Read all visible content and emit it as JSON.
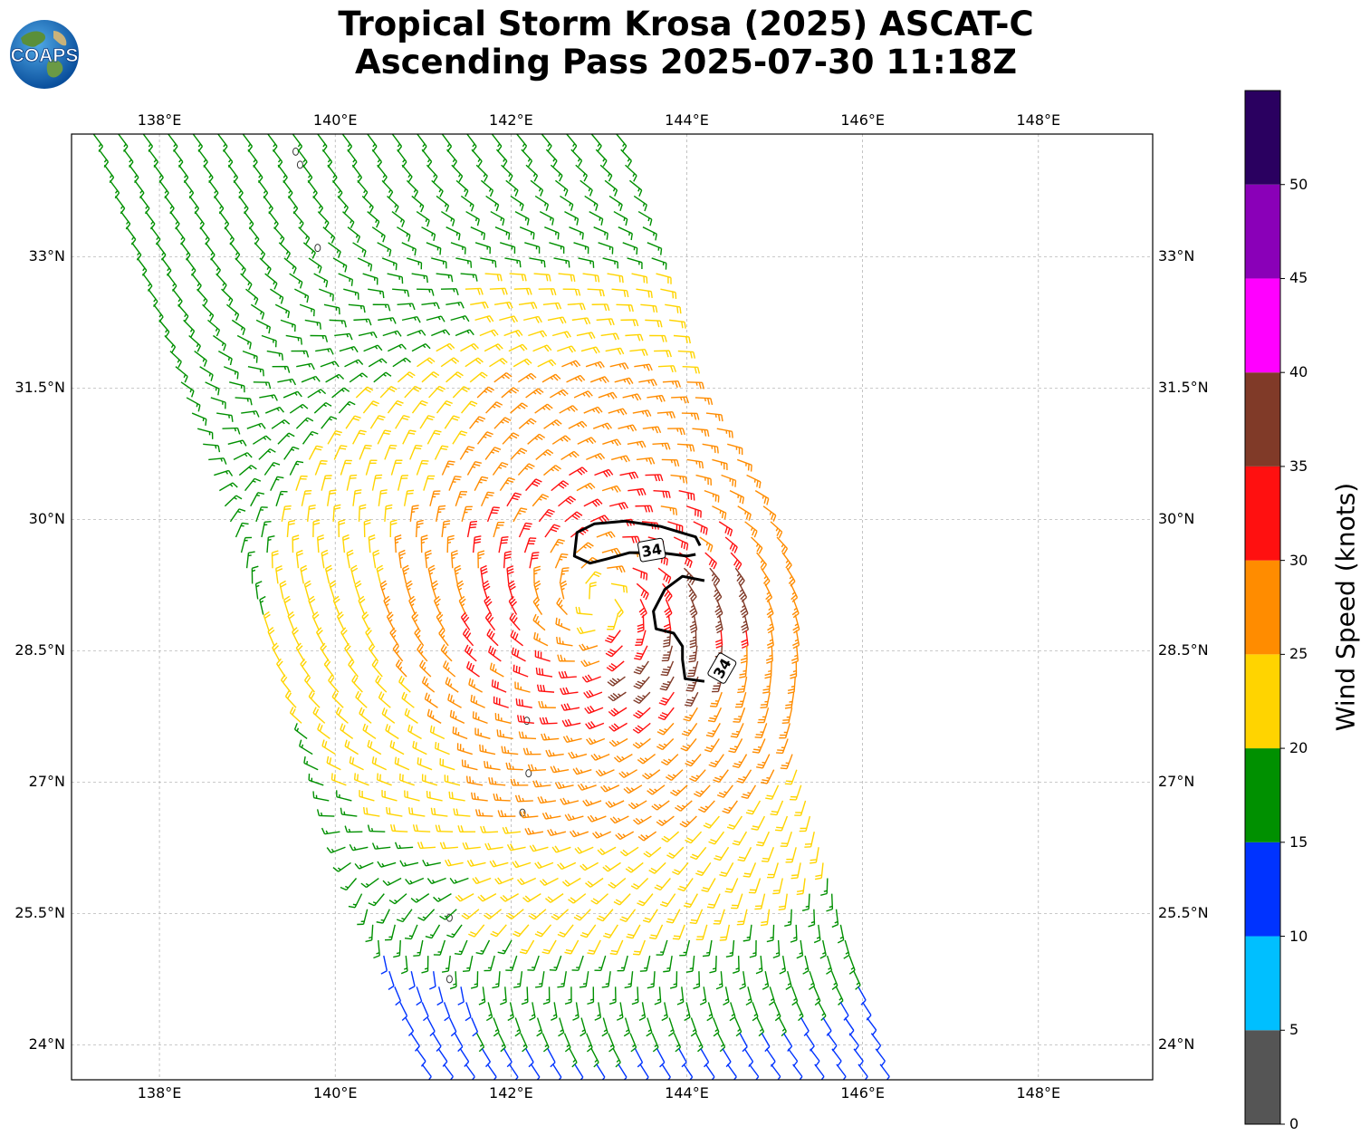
{
  "title": {
    "line1": "Tropical Storm Krosa (2025) ASCAT-C",
    "line2": "Ascending Pass 2025-07-30 11:18Z"
  },
  "logo": {
    "text": "COAPS"
  },
  "map": {
    "lon_range": [
      137.0,
      149.3
    ],
    "lat_range": [
      23.6,
      34.4
    ],
    "lon_ticks": [
      {
        "value": 138,
        "label": "138°E"
      },
      {
        "value": 140,
        "label": "140°E"
      },
      {
        "value": 142,
        "label": "142°E"
      },
      {
        "value": 144,
        "label": "144°E"
      },
      {
        "value": 146,
        "label": "146°E"
      },
      {
        "value": 148,
        "label": "148°E"
      }
    ],
    "lat_ticks": [
      {
        "value": 33,
        "label": "33°N"
      },
      {
        "value": 31.5,
        "label": "31.5°N"
      },
      {
        "value": 30,
        "label": "30°N"
      },
      {
        "value": 28.5,
        "label": "28.5°N"
      },
      {
        "value": 27,
        "label": "27°N"
      },
      {
        "value": 25.5,
        "label": "25.5°N"
      },
      {
        "value": 24,
        "label": "24°N"
      }
    ],
    "grid": true,
    "storm_center": {
      "lon": 143.0,
      "lat": 29.05
    },
    "contour_label": "34",
    "contour_labels": [
      {
        "lon": 143.6,
        "lat": 29.65,
        "text": "34",
        "angle": -10
      },
      {
        "lon": 144.4,
        "lat": 28.3,
        "text": "34",
        "angle": -60
      }
    ]
  },
  "colorbar": {
    "title": "Wind Speed (knots)",
    "bins": [
      {
        "min": 0,
        "max": 5,
        "color": "#555555"
      },
      {
        "min": 5,
        "max": 10,
        "color": "#00bfff"
      },
      {
        "min": 10,
        "max": 15,
        "color": "#0033ff"
      },
      {
        "min": 15,
        "max": 20,
        "color": "#009000"
      },
      {
        "min": 20,
        "max": 25,
        "color": "#ffd400"
      },
      {
        "min": 25,
        "max": 30,
        "color": "#ff8c00"
      },
      {
        "min": 30,
        "max": 35,
        "color": "#ff1010"
      },
      {
        "min": 35,
        "max": 40,
        "color": "#803a28"
      },
      {
        "min": 40,
        "max": 45,
        "color": "#ff00ff"
      },
      {
        "min": 45,
        "max": 50,
        "color": "#8a00b8"
      },
      {
        "min": 50,
        "max": 55,
        "color": "#2a0060"
      }
    ],
    "tick_labels": [
      "0",
      "5",
      "10",
      "15",
      "20",
      "25",
      "30",
      "35",
      "40",
      "45",
      "50"
    ]
  }
}
